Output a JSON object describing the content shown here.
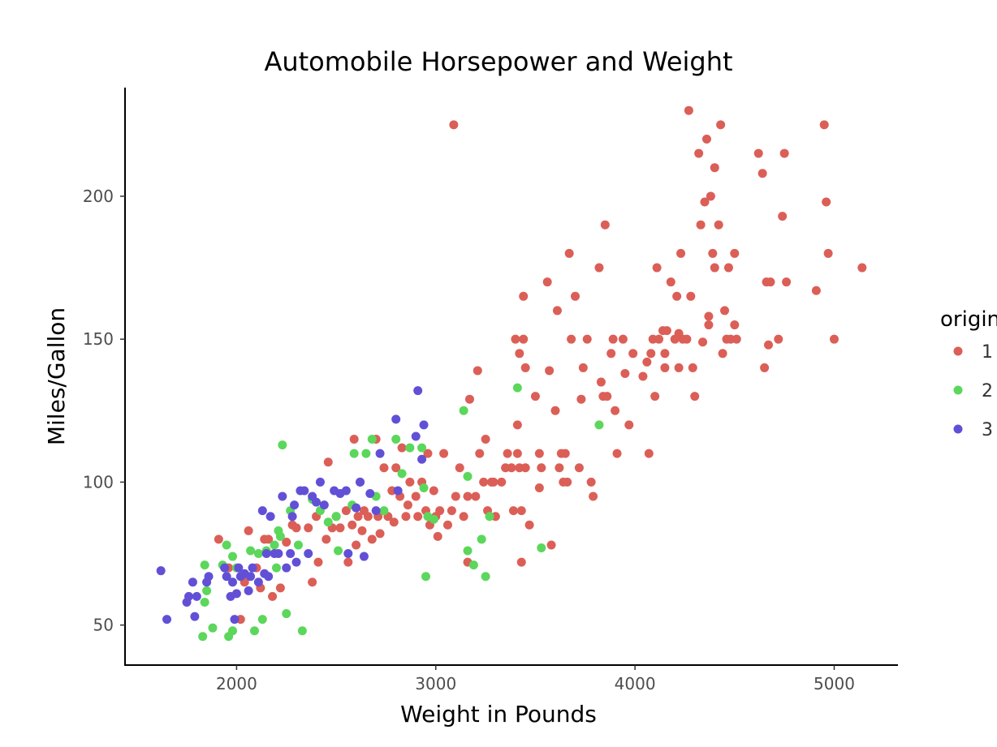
{
  "chart_data": {
    "type": "scatter",
    "title": "Automobile Horsepower and Weight",
    "xlabel": "Weight in Pounds",
    "ylabel": "Miles/Gallon",
    "xlim": [
      1440,
      5320
    ],
    "ylim": [
      36,
      238
    ],
    "x_ticks": [
      2000,
      3000,
      4000,
      5000
    ],
    "y_ticks": [
      50,
      100,
      150,
      200
    ],
    "grid": false,
    "legend": {
      "title": "origin",
      "position": "right"
    },
    "series": [
      {
        "name": "1",
        "color": "#db5f57",
        "points": [
          [
            1910,
            80
          ],
          [
            1960,
            70
          ],
          [
            2020,
            52
          ],
          [
            2040,
            65
          ],
          [
            2060,
            83
          ],
          [
            2100,
            70
          ],
          [
            2120,
            63
          ],
          [
            2140,
            80
          ],
          [
            2160,
            80
          ],
          [
            2180,
            60
          ],
          [
            2220,
            63
          ],
          [
            2250,
            79
          ],
          [
            2280,
            85
          ],
          [
            2300,
            84
          ],
          [
            2360,
            84
          ],
          [
            2380,
            65
          ],
          [
            2400,
            88
          ],
          [
            2410,
            72
          ],
          [
            2450,
            80
          ],
          [
            2460,
            107
          ],
          [
            2480,
            84
          ],
          [
            2500,
            88
          ],
          [
            2520,
            84
          ],
          [
            2550,
            90
          ],
          [
            2560,
            72
          ],
          [
            2580,
            85
          ],
          [
            2590,
            115
          ],
          [
            2600,
            78
          ],
          [
            2610,
            88
          ],
          [
            2620,
            100
          ],
          [
            2630,
            83
          ],
          [
            2640,
            90
          ],
          [
            2660,
            88
          ],
          [
            2680,
            80
          ],
          [
            2700,
            115
          ],
          [
            2710,
            88
          ],
          [
            2720,
            82
          ],
          [
            2740,
            105
          ],
          [
            2760,
            88
          ],
          [
            2780,
            97
          ],
          [
            2790,
            86
          ],
          [
            2800,
            105
          ],
          [
            2820,
            95
          ],
          [
            2830,
            112
          ],
          [
            2850,
            88
          ],
          [
            2860,
            92
          ],
          [
            2870,
            100
          ],
          [
            2900,
            95
          ],
          [
            2910,
            88
          ],
          [
            2930,
            100
          ],
          [
            2950,
            90
          ],
          [
            2960,
            110
          ],
          [
            2970,
            85
          ],
          [
            2990,
            97
          ],
          [
            3000,
            88
          ],
          [
            3010,
            81
          ],
          [
            3020,
            90
          ],
          [
            3040,
            110
          ],
          [
            3060,
            85
          ],
          [
            3080,
            90
          ],
          [
            3090,
            225
          ],
          [
            3100,
            95
          ],
          [
            3120,
            105
          ],
          [
            3140,
            88
          ],
          [
            3160,
            72
          ],
          [
            3160,
            95
          ],
          [
            3170,
            129
          ],
          [
            3200,
            95
          ],
          [
            3210,
            139
          ],
          [
            3220,
            110
          ],
          [
            3240,
            100
          ],
          [
            3250,
            115
          ],
          [
            3260,
            90
          ],
          [
            3280,
            100
          ],
          [
            3290,
            100
          ],
          [
            3300,
            88
          ],
          [
            3330,
            100
          ],
          [
            3350,
            105
          ],
          [
            3360,
            110
          ],
          [
            3380,
            105
          ],
          [
            3390,
            90
          ],
          [
            3400,
            150
          ],
          [
            3410,
            110
          ],
          [
            3410,
            120
          ],
          [
            3420,
            105
          ],
          [
            3420,
            145
          ],
          [
            3430,
            72
          ],
          [
            3430,
            90
          ],
          [
            3440,
            150
          ],
          [
            3440,
            165
          ],
          [
            3450,
            105
          ],
          [
            3450,
            140
          ],
          [
            3470,
            85
          ],
          [
            3500,
            130
          ],
          [
            3520,
            98
          ],
          [
            3520,
            110
          ],
          [
            3530,
            105
          ],
          [
            3560,
            170
          ],
          [
            3570,
            139
          ],
          [
            3580,
            78
          ],
          [
            3600,
            125
          ],
          [
            3610,
            160
          ],
          [
            3620,
            105
          ],
          [
            3630,
            110
          ],
          [
            3640,
            100
          ],
          [
            3650,
            110
          ],
          [
            3660,
            100
          ],
          [
            3670,
            180
          ],
          [
            3680,
            150
          ],
          [
            3700,
            165
          ],
          [
            3720,
            105
          ],
          [
            3730,
            129
          ],
          [
            3740,
            140
          ],
          [
            3760,
            150
          ],
          [
            3780,
            100
          ],
          [
            3790,
            95
          ],
          [
            3820,
            175
          ],
          [
            3830,
            135
          ],
          [
            3840,
            130
          ],
          [
            3850,
            190
          ],
          [
            3860,
            130
          ],
          [
            3880,
            145
          ],
          [
            3890,
            150
          ],
          [
            3900,
            125
          ],
          [
            3910,
            110
          ],
          [
            3940,
            150
          ],
          [
            3950,
            138
          ],
          [
            3970,
            120
          ],
          [
            3990,
            145
          ],
          [
            4040,
            137
          ],
          [
            4060,
            142
          ],
          [
            4070,
            110
          ],
          [
            4080,
            145
          ],
          [
            4090,
            150
          ],
          [
            4100,
            130
          ],
          [
            4110,
            175
          ],
          [
            4120,
            150
          ],
          [
            4140,
            153
          ],
          [
            4150,
            145
          ],
          [
            4150,
            140
          ],
          [
            4160,
            153
          ],
          [
            4180,
            170
          ],
          [
            4200,
            150
          ],
          [
            4210,
            165
          ],
          [
            4220,
            152
          ],
          [
            4220,
            140
          ],
          [
            4230,
            180
          ],
          [
            4240,
            150
          ],
          [
            4260,
            150
          ],
          [
            4270,
            230
          ],
          [
            4280,
            165
          ],
          [
            4290,
            140
          ],
          [
            4300,
            130
          ],
          [
            4320,
            215
          ],
          [
            4330,
            190
          ],
          [
            4340,
            149
          ],
          [
            4350,
            198
          ],
          [
            4360,
            220
          ],
          [
            4370,
            158
          ],
          [
            4370,
            155
          ],
          [
            4380,
            200
          ],
          [
            4390,
            180
          ],
          [
            4400,
            175
          ],
          [
            4400,
            210
          ],
          [
            4420,
            190
          ],
          [
            4430,
            225
          ],
          [
            4440,
            145
          ],
          [
            4450,
            160
          ],
          [
            4460,
            150
          ],
          [
            4470,
            175
          ],
          [
            4480,
            150
          ],
          [
            4500,
            180
          ],
          [
            4500,
            155
          ],
          [
            4510,
            150
          ],
          [
            4620,
            215
          ],
          [
            4640,
            208
          ],
          [
            4650,
            140
          ],
          [
            4660,
            170
          ],
          [
            4670,
            148
          ],
          [
            4680,
            170
          ],
          [
            4720,
            150
          ],
          [
            4740,
            193
          ],
          [
            4750,
            215
          ],
          [
            4760,
            170
          ],
          [
            4910,
            167
          ],
          [
            4950,
            225
          ],
          [
            4960,
            198
          ],
          [
            4970,
            180
          ],
          [
            5000,
            150
          ],
          [
            5140,
            175
          ]
        ]
      },
      {
        "name": "2",
        "color": "#5bd75b",
        "points": [
          [
            1830,
            46
          ],
          [
            1840,
            58
          ],
          [
            1840,
            71
          ],
          [
            1850,
            62
          ],
          [
            1880,
            49
          ],
          [
            1930,
            71
          ],
          [
            1950,
            78
          ],
          [
            1960,
            46
          ],
          [
            1980,
            74
          ],
          [
            1980,
            48
          ],
          [
            2000,
            70
          ],
          [
            2070,
            76
          ],
          [
            2090,
            48
          ],
          [
            2110,
            75
          ],
          [
            2130,
            52
          ],
          [
            2150,
            76
          ],
          [
            2190,
            78
          ],
          [
            2200,
            70
          ],
          [
            2210,
            83
          ],
          [
            2220,
            81
          ],
          [
            2230,
            113
          ],
          [
            2250,
            54
          ],
          [
            2270,
            90
          ],
          [
            2310,
            78
          ],
          [
            2330,
            48
          ],
          [
            2380,
            94
          ],
          [
            2420,
            90
          ],
          [
            2460,
            86
          ],
          [
            2500,
            88
          ],
          [
            2510,
            76
          ],
          [
            2580,
            92
          ],
          [
            2590,
            110
          ],
          [
            2650,
            110
          ],
          [
            2680,
            115
          ],
          [
            2700,
            95
          ],
          [
            2740,
            90
          ],
          [
            2800,
            115
          ],
          [
            2830,
            103
          ],
          [
            2870,
            112
          ],
          [
            2930,
            112
          ],
          [
            2940,
            98
          ],
          [
            2950,
            67
          ],
          [
            2960,
            88
          ],
          [
            2990,
            87
          ],
          [
            3140,
            125
          ],
          [
            3160,
            102
          ],
          [
            3160,
            76
          ],
          [
            3190,
            71
          ],
          [
            3230,
            80
          ],
          [
            3250,
            67
          ],
          [
            3270,
            88
          ],
          [
            3410,
            133
          ],
          [
            3530,
            77
          ],
          [
            3820,
            120
          ]
        ]
      },
      {
        "name": "3",
        "color": "#6150d6",
        "points": [
          [
            1620,
            69
          ],
          [
            1650,
            52
          ],
          [
            1750,
            58
          ],
          [
            1760,
            60
          ],
          [
            1780,
            65
          ],
          [
            1790,
            53
          ],
          [
            1800,
            60
          ],
          [
            1850,
            65
          ],
          [
            1860,
            67
          ],
          [
            1940,
            70
          ],
          [
            1950,
            67
          ],
          [
            1970,
            60
          ],
          [
            1980,
            65
          ],
          [
            1990,
            52
          ],
          [
            2000,
            61
          ],
          [
            2010,
            70
          ],
          [
            2020,
            67
          ],
          [
            2040,
            68
          ],
          [
            2060,
            62
          ],
          [
            2070,
            67
          ],
          [
            2080,
            70
          ],
          [
            2110,
            65
          ],
          [
            2130,
            90
          ],
          [
            2140,
            68
          ],
          [
            2150,
            75
          ],
          [
            2160,
            67
          ],
          [
            2170,
            88
          ],
          [
            2190,
            75
          ],
          [
            2210,
            75
          ],
          [
            2230,
            95
          ],
          [
            2250,
            70
          ],
          [
            2270,
            75
          ],
          [
            2280,
            88
          ],
          [
            2290,
            92
          ],
          [
            2300,
            72
          ],
          [
            2320,
            97
          ],
          [
            2340,
            97
          ],
          [
            2360,
            75
          ],
          [
            2380,
            95
          ],
          [
            2400,
            93
          ],
          [
            2420,
            100
          ],
          [
            2440,
            92
          ],
          [
            2490,
            97
          ],
          [
            2520,
            96
          ],
          [
            2550,
            97
          ],
          [
            2560,
            75
          ],
          [
            2600,
            91
          ],
          [
            2620,
            100
          ],
          [
            2640,
            74
          ],
          [
            2670,
            96
          ],
          [
            2700,
            90
          ],
          [
            2720,
            110
          ],
          [
            2800,
            122
          ],
          [
            2810,
            97
          ],
          [
            2900,
            116
          ],
          [
            2910,
            132
          ],
          [
            2930,
            108
          ],
          [
            2940,
            120
          ]
        ]
      }
    ]
  }
}
